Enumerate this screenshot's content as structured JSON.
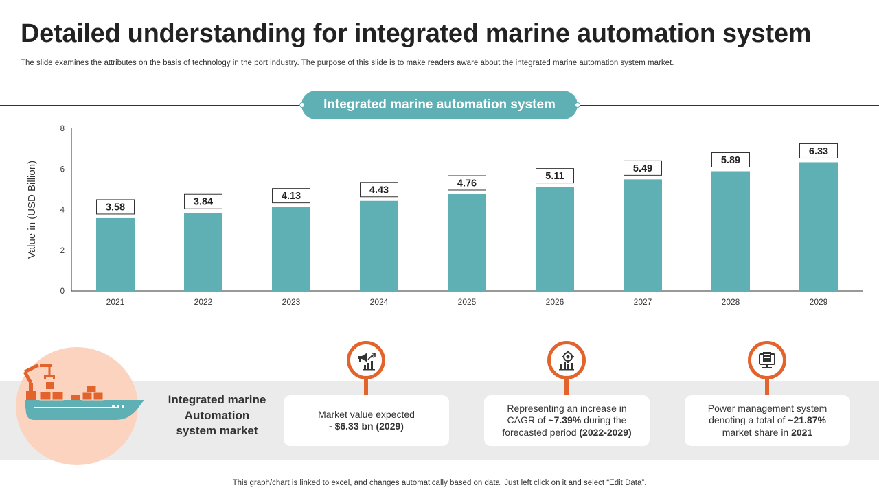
{
  "slide": {
    "title": "Detailed understanding for integrated marine automation system",
    "subtitle": "The slide examines the attributes on the basis of technology in the port industry. The purpose of this slide is to make readers aware about the integrated marine automation system market.",
    "footer": "This graph/chart is linked to excel, and changes automatically based on data. Just left click on it and select “Edit Data”."
  },
  "chart_data": {
    "type": "bar",
    "title": "Integrated marine automation system",
    "categories": [
      "2021",
      "2022",
      "2023",
      "2024",
      "2025",
      "2026",
      "2027",
      "2028",
      "2029"
    ],
    "values": [
      3.58,
      3.84,
      4.13,
      4.43,
      4.76,
      5.11,
      5.49,
      5.89,
      6.33
    ],
    "data_labels": [
      "3.58",
      "3.84",
      "4.13",
      "4.43",
      "4.76",
      "5.11",
      "5.49",
      "5.89",
      "6.33"
    ],
    "xlabel": "",
    "ylabel": "Value in (USD Billion)",
    "ylim": [
      0,
      8
    ],
    "yticks": [
      0,
      2,
      4,
      6,
      8
    ],
    "bar_color": "#5fb0b5",
    "grid": false,
    "legend": "none"
  },
  "summary": {
    "market_label": [
      "Integrated marine",
      "Automation",
      "system market"
    ],
    "cards": [
      {
        "icon": "megaphone-growth-icon",
        "text_before": "Market value expected",
        "text_bold": "- $6.33 bn (2029)",
        "text_after": ""
      },
      {
        "icon": "gear-money-chart-icon",
        "text_before": "Representing an increase in CAGR of ",
        "text_bold": "~7.39%",
        "text_mid": " during the forecasted period ",
        "text_bold2": "(2022-2029)"
      },
      {
        "icon": "power-management-icon",
        "text_before": "Power management system denoting a total of ",
        "text_bold": "~21.87%",
        "text_mid": " market share in ",
        "text_bold2": "2021"
      }
    ]
  },
  "colors": {
    "accent_teal": "#5fb0b5",
    "accent_orange": "#e2632b",
    "band_gray": "#ebebeb",
    "peach": "#fcd3bf"
  }
}
